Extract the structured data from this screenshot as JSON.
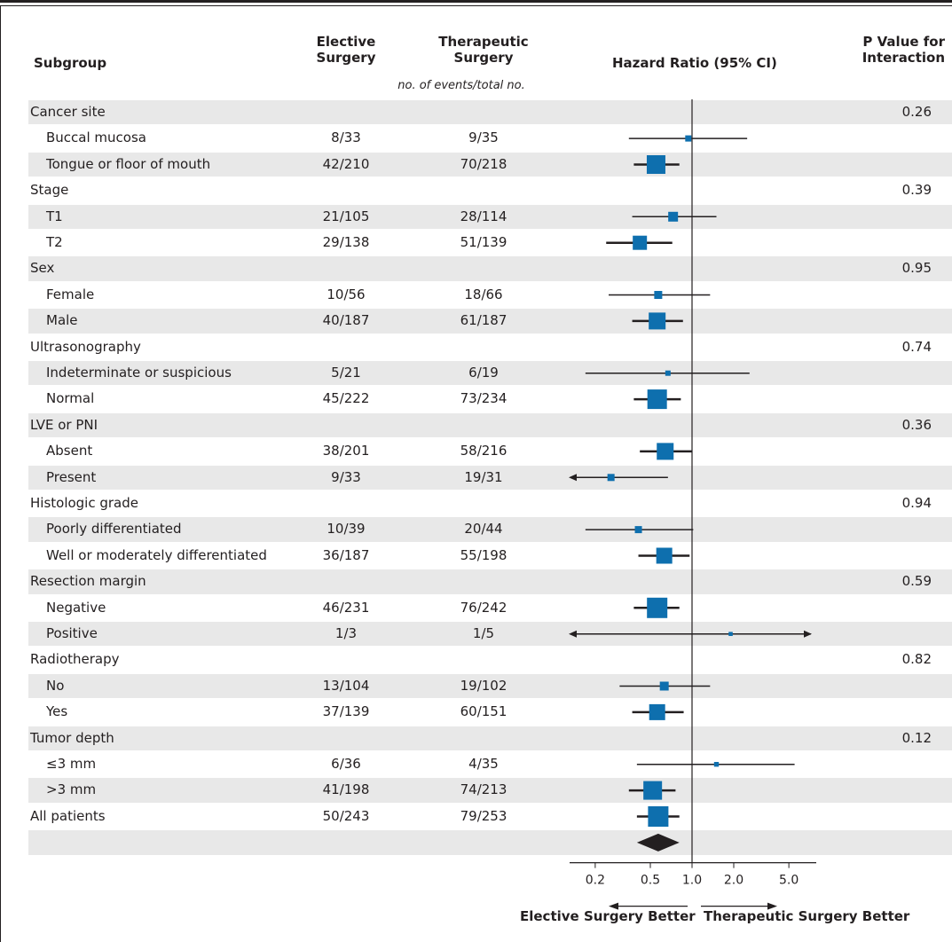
{
  "header": {
    "subgroup": "Subgroup",
    "elective_line1": "Elective",
    "elective_line2": "Surgery",
    "therapeutic_line1": "Therapeutic",
    "therapeutic_line2": "Surgery",
    "hazard": "Hazard Ratio (95% CI)",
    "pval_line1": "P Value for",
    "pval_line2": "Interaction",
    "units": "no. of events/total no."
  },
  "colors": {
    "marker": "#0e6fae",
    "stripe": "#e8e8e8",
    "line": "#231f20"
  },
  "chart_data": {
    "type": "forest",
    "x_scale": "log",
    "xlim": [
      0.1,
      9.0
    ],
    "reference_line": 1.0,
    "ticks": [
      0.2,
      0.5,
      1.0,
      2.0,
      5.0
    ],
    "tick_labels": [
      "0.2",
      "0.5",
      "1.0",
      "2.0",
      "5.0"
    ],
    "left_label": "Elective Surgery Better",
    "right_label": "Therapeutic Surgery Better",
    "rows": [
      {
        "label": "Cancer site",
        "group": true,
        "p": "0.26"
      },
      {
        "label": "Buccal mucosa",
        "elective": "8/33",
        "therapeutic": "9/35",
        "hr": 0.94,
        "lo": 0.35,
        "hi": 2.5,
        "weight": 0.15
      },
      {
        "label": "Tongue or floor of mouth",
        "elective": "42/210",
        "therapeutic": "70/218",
        "hr": 0.55,
        "lo": 0.38,
        "hi": 0.81,
        "weight": 0.85
      },
      {
        "label": "Stage",
        "group": true,
        "p": "0.39"
      },
      {
        "label": "T1",
        "elective": "21/105",
        "therapeutic": "28/114",
        "hr": 0.73,
        "lo": 0.37,
        "hi": 1.5,
        "weight": 0.35
      },
      {
        "label": "T2",
        "elective": "29/138",
        "therapeutic": "51/139",
        "hr": 0.42,
        "lo": 0.24,
        "hi": 0.72,
        "weight": 0.6
      },
      {
        "label": "Sex",
        "group": true,
        "p": "0.95"
      },
      {
        "label": "Female",
        "elective": "10/56",
        "therapeutic": "18/66",
        "hr": 0.57,
        "lo": 0.25,
        "hi": 1.35,
        "weight": 0.25
      },
      {
        "label": "Male",
        "elective": "40/187",
        "therapeutic": "61/187",
        "hr": 0.56,
        "lo": 0.37,
        "hi": 0.86,
        "weight": 0.75
      },
      {
        "label": "Ultrasonography",
        "group": true,
        "p": "0.74"
      },
      {
        "label": "Indeterminate or suspicious",
        "elective": "5/21",
        "therapeutic": "6/19",
        "hr": 0.67,
        "lo": 0.17,
        "hi": 2.6,
        "weight": 0.1
      },
      {
        "label": "Normal",
        "elective": "45/222",
        "therapeutic": "73/234",
        "hr": 0.56,
        "lo": 0.38,
        "hi": 0.83,
        "weight": 0.9
      },
      {
        "label": "LVE or PNI",
        "group": true,
        "p": "0.36"
      },
      {
        "label": "Absent",
        "elective": "38/201",
        "therapeutic": "58/216",
        "hr": 0.64,
        "lo": 0.42,
        "hi": 1.0,
        "weight": 0.75
      },
      {
        "label": "Present",
        "elective": "9/33",
        "therapeutic": "19/31",
        "hr": 0.26,
        "lo": 0.1,
        "hi": 0.67,
        "weight": 0.2,
        "arrow_left": true
      },
      {
        "label": "Histologic grade",
        "group": true,
        "p": "0.94"
      },
      {
        "label": "Poorly differentiated",
        "elective": "10/39",
        "therapeutic": "20/44",
        "hr": 0.41,
        "lo": 0.17,
        "hi": 1.02,
        "weight": 0.2
      },
      {
        "label": "Well or moderately differentiated",
        "elective": "36/187",
        "therapeutic": "55/198",
        "hr": 0.63,
        "lo": 0.41,
        "hi": 0.96,
        "weight": 0.7
      },
      {
        "label": "Resection margin",
        "group": true,
        "p": "0.59"
      },
      {
        "label": "Negative",
        "elective": "46/231",
        "therapeutic": "76/242",
        "hr": 0.56,
        "lo": 0.38,
        "hi": 0.81,
        "weight": 0.95
      },
      {
        "label": "Positive",
        "elective": "1/3",
        "therapeutic": "1/5",
        "hr": 1.9,
        "lo": 0.1,
        "hi": 9.0,
        "weight": 0.03,
        "arrow_left": true,
        "arrow_right": true
      },
      {
        "label": "Radiotherapy",
        "group": true,
        "p": "0.82"
      },
      {
        "label": "No",
        "elective": "13/104",
        "therapeutic": "19/102",
        "hr": 0.63,
        "lo": 0.3,
        "hi": 1.35,
        "weight": 0.3
      },
      {
        "label": "Yes",
        "elective": "37/139",
        "therapeutic": "60/151",
        "hr": 0.56,
        "lo": 0.37,
        "hi": 0.87,
        "weight": 0.7
      },
      {
        "label": "Tumor depth",
        "group": true,
        "p": "0.12"
      },
      {
        "label": "≤3 mm",
        "elective": "6/36",
        "therapeutic": "4/35",
        "hr": 1.5,
        "lo": 0.4,
        "hi": 5.5,
        "weight": 0.07
      },
      {
        "label": ">3 mm",
        "elective": "41/198",
        "therapeutic": "74/213",
        "hr": 0.52,
        "lo": 0.35,
        "hi": 0.76,
        "weight": 0.85
      },
      {
        "label": "All patients",
        "elective": "50/243",
        "therapeutic": "79/253",
        "hr": 0.57,
        "lo": 0.4,
        "hi": 0.81,
        "weight": 0.95,
        "summary": true
      }
    ]
  }
}
